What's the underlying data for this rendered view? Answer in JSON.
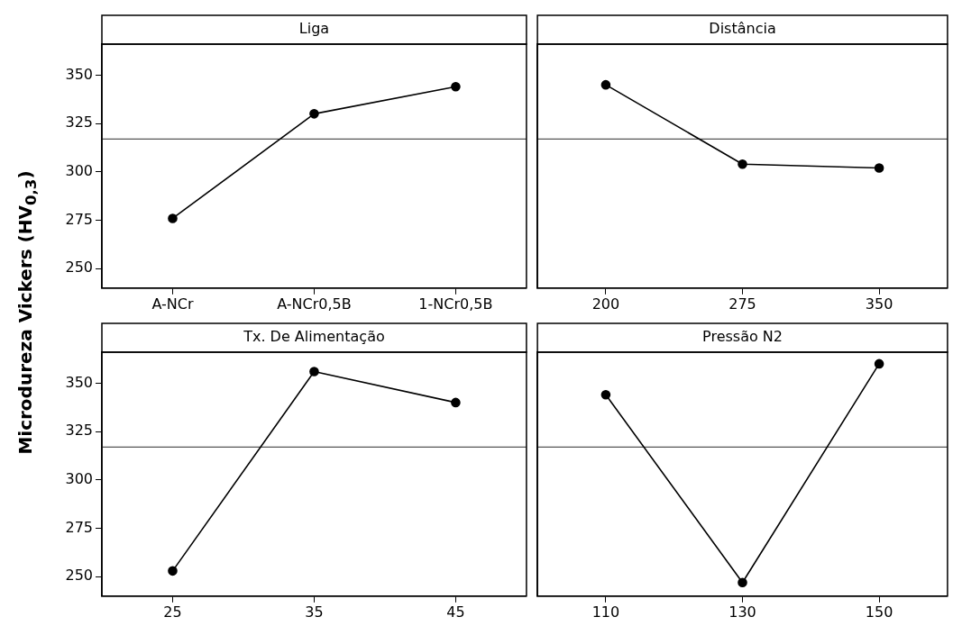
{
  "chart_data": [
    {
      "type": "line",
      "title": "Liga",
      "ylabel": "Microdureza Vickers (HV$_{0,3}$)",
      "categories": [
        "A-NCr",
        "A-NCr0,5B",
        "1-NCr0,5B"
      ],
      "series": [
        {
          "color": "#000000",
          "values": [
            276,
            330,
            344
          ]
        }
      ],
      "ylim": [
        240,
        366
      ],
      "yticks": [
        250,
        275,
        300,
        325,
        350
      ],
      "ref_lines": [
        {
          "axis": "y",
          "value": 317,
          "color": "#555555"
        }
      ],
      "marker": "circle",
      "line_style": "solid",
      "legend": false
    },
    {
      "type": "line",
      "title": "Distância",
      "categories": [
        "200",
        "275",
        "350"
      ],
      "series": [
        {
          "color": "#000000",
          "values": [
            345,
            304,
            302
          ]
        }
      ],
      "ylim": [
        240,
        366
      ],
      "yticks": [
        250,
        275,
        300,
        325,
        350
      ],
      "tick_labels": "x",
      "ref_lines": [
        {
          "axis": "y",
          "value": 317,
          "color": "#555555"
        }
      ],
      "marker": "circle",
      "line_style": "solid",
      "legend": false
    },
    {
      "type": "line",
      "title": "Tx. De Alimentação",
      "categories": [
        "25",
        "35",
        "45"
      ],
      "series": [
        {
          "color": "#000000",
          "values": [
            253,
            356,
            340
          ]
        }
      ],
      "ylim": [
        240,
        366
      ],
      "yticks": [
        250,
        275,
        300,
        325,
        350
      ],
      "ref_lines": [
        {
          "axis": "y",
          "value": 317,
          "color": "#555555"
        }
      ],
      "marker": "circle",
      "line_style": "solid",
      "legend": false
    },
    {
      "type": "line",
      "title": "Pressão N2",
      "categories": [
        "110",
        "130",
        "150"
      ],
      "series": [
        {
          "color": "#000000",
          "values": [
            344,
            247,
            360
          ]
        }
      ],
      "ylim": [
        240,
        366
      ],
      "yticks": [
        250,
        275,
        300,
        325,
        350
      ],
      "tick_labels": "x",
      "ref_lines": [
        {
          "axis": "y",
          "value": 317,
          "color": "#555555"
        }
      ],
      "marker": "circle",
      "line_style": "solid",
      "legend": false
    }
  ]
}
